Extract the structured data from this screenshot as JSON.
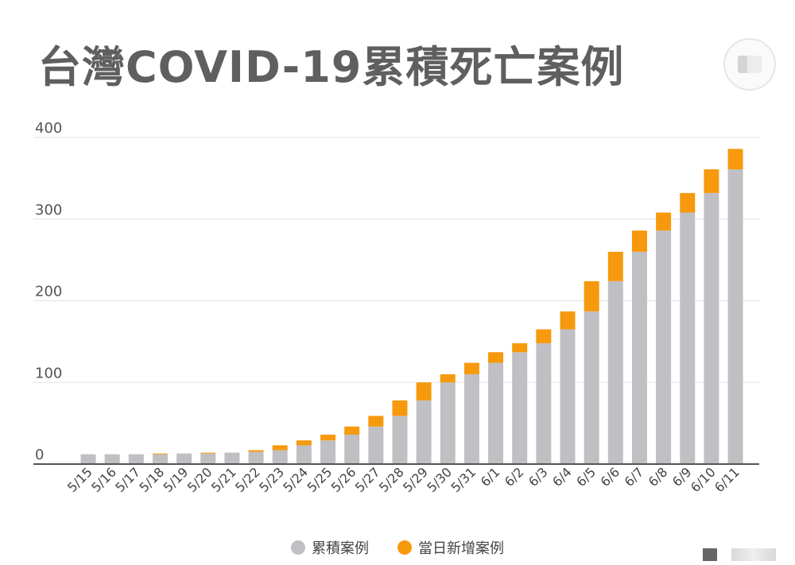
{
  "colors": {
    "cumulative": "#c0bfc4",
    "daily_new": "#f7990c",
    "grid": "#e3e3e3",
    "axis": "#555555",
    "text": "#555555"
  },
  "legend": {
    "cumulative_label": "累積案例",
    "daily_new_label": "當日新增案例"
  },
  "chart_data": {
    "type": "bar",
    "stacked": true,
    "title": "台灣COVID-19累積死亡案例",
    "xlabel": "",
    "ylabel": "",
    "ylim": [
      0,
      400
    ],
    "yticks": [
      0,
      100,
      200,
      300,
      400
    ],
    "grid": true,
    "legend_position": "bottom",
    "categories": [
      "5/15",
      "5/16",
      "5/17",
      "5/18",
      "5/19",
      "5/20",
      "5/21",
      "5/22",
      "5/23",
      "5/24",
      "5/25",
      "5/26",
      "5/27",
      "5/28",
      "5/29",
      "5/30",
      "5/31",
      "6/1",
      "6/2",
      "6/3",
      "6/4",
      "6/5",
      "6/6",
      "6/7",
      "6/8",
      "6/9",
      "6/10",
      "6/11"
    ],
    "series": [
      {
        "name": "累積案例",
        "values": [
          12,
          12,
          12,
          12,
          13,
          13,
          14,
          15,
          17,
          23,
          29,
          36,
          46,
          59,
          78,
          100,
          110,
          124,
          137,
          148,
          165,
          187,
          224,
          260,
          286,
          308,
          332,
          361
        ]
      },
      {
        "name": "當日新增案例",
        "values": [
          0,
          0,
          0,
          1,
          0,
          1,
          0,
          2,
          6,
          6,
          7,
          10,
          13,
          19,
          22,
          10,
          14,
          13,
          11,
          17,
          22,
          37,
          36,
          26,
          22,
          24,
          29,
          25
        ]
      }
    ]
  }
}
